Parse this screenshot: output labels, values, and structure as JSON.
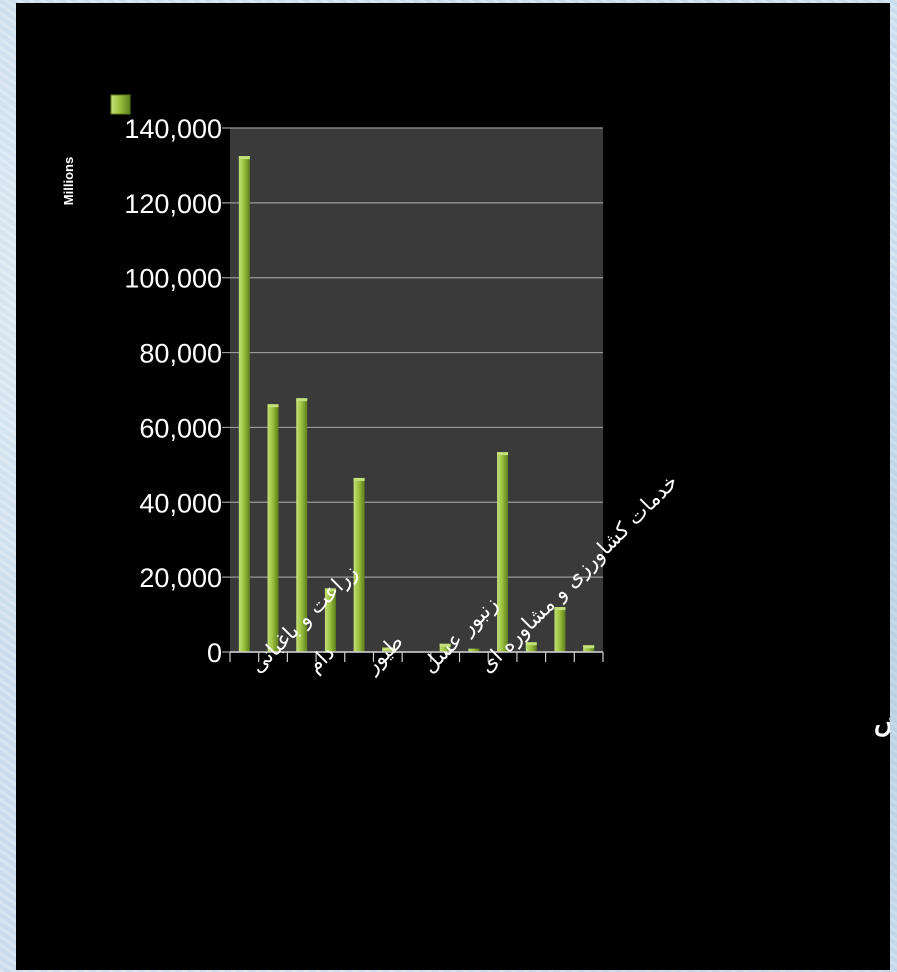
{
  "chart_data": {
    "type": "bar",
    "categories": [
      "زراعت و باغبانی",
      "",
      "دام",
      "",
      "طیور",
      "",
      "زنبور عسل",
      "",
      "خدمات کشاورزی و مشاوره ای",
      "",
      "",
      "",
      ""
    ],
    "values": [
      132500,
      66200,
      67800,
      17000,
      46500,
      1200,
      0,
      2200,
      900,
      53400,
      2600,
      12000,
      1800
    ],
    "y_ticks": [
      "0",
      "20,000",
      "40,000",
      "60,000",
      "80,000",
      "100,000",
      "120,000",
      "140,000"
    ],
    "ylim": [
      0,
      140000
    ],
    "units_label": "Millions",
    "xlabel": "زیر بخش",
    "grid": true,
    "legend": "top-left",
    "colors": {
      "bar_light": "#c4e07a",
      "bar_mid": "#9cc23f",
      "bar_dark": "#5f7f1c",
      "plot_bg": "#3a3a3a",
      "grid": "#9a9a9a"
    }
  }
}
